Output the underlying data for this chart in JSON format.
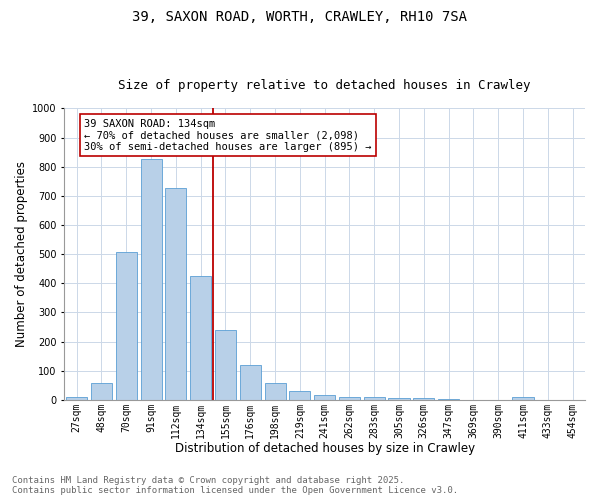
{
  "title_line1": "39, SAXON ROAD, WORTH, CRAWLEY, RH10 7SA",
  "title_line2": "Size of property relative to detached houses in Crawley",
  "xlabel": "Distribution of detached houses by size in Crawley",
  "ylabel": "Number of detached properties",
  "bar_labels": [
    "27sqm",
    "48sqm",
    "70sqm",
    "91sqm",
    "112sqm",
    "134sqm",
    "155sqm",
    "176sqm",
    "198sqm",
    "219sqm",
    "241sqm",
    "262sqm",
    "283sqm",
    "305sqm",
    "326sqm",
    "347sqm",
    "369sqm",
    "390sqm",
    "411sqm",
    "433sqm",
    "454sqm"
  ],
  "bar_values": [
    8,
    57,
    507,
    825,
    728,
    425,
    238,
    118,
    57,
    30,
    15,
    10,
    10,
    5,
    5,
    2,
    0,
    0,
    8,
    0,
    0
  ],
  "bar_color": "#b8d0e8",
  "bar_edge_color": "#5a9fd4",
  "vline_x_idx": 5,
  "vline_color": "#bb0000",
  "annotation_text": "39 SAXON ROAD: 134sqm\n← 70% of detached houses are smaller (2,098)\n30% of semi-detached houses are larger (895) →",
  "annotation_box_color": "#ffffff",
  "annotation_box_edge": "#bb0000",
  "ylim": [
    0,
    1000
  ],
  "grid_color": "#ccd8e8",
  "background_color": "#ffffff",
  "footer_line1": "Contains HM Land Registry data © Crown copyright and database right 2025.",
  "footer_line2": "Contains public sector information licensed under the Open Government Licence v3.0.",
  "title_fontsize": 10,
  "subtitle_fontsize": 9,
  "axis_label_fontsize": 8.5,
  "tick_fontsize": 7,
  "annotation_fontsize": 7.5,
  "footer_fontsize": 6.5
}
